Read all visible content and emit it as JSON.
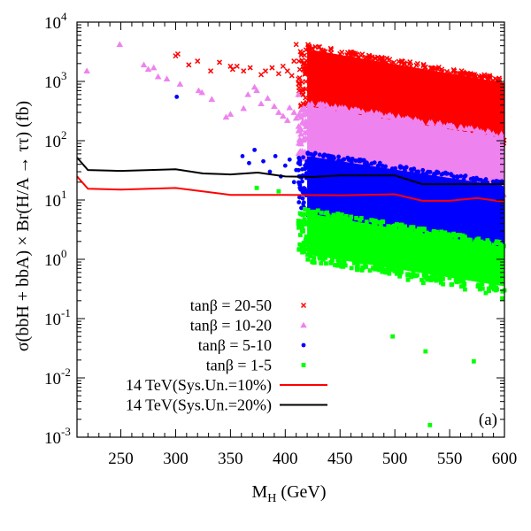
{
  "chart_data": {
    "type": "scatter",
    "xlabel_main": "M",
    "xlabel_sub": "H",
    "xlabel_rest": "  (GeV)",
    "ylabel": "σ(bbH + bbA) × Br(H/A → ττ) (fb)",
    "xlim": [
      210,
      600
    ],
    "ylim": [
      0.001,
      10000
    ],
    "yscale": "log",
    "grid": false,
    "legend_position": "bottom-left",
    "panel_label": "(a)",
    "x_ticks": [
      250,
      300,
      350,
      400,
      450,
      500,
      550,
      600
    ],
    "y_ticks": [
      {
        "value": 0.001,
        "base": "10",
        "exp": "-3"
      },
      {
        "value": 0.01,
        "base": "10",
        "exp": "-2"
      },
      {
        "value": 0.1,
        "base": "10",
        "exp": "-1"
      },
      {
        "value": 1,
        "base": "10",
        "exp": "0"
      },
      {
        "value": 10,
        "base": "10",
        "exp": "1"
      },
      {
        "value": 100,
        "base": "10",
        "exp": "2"
      },
      {
        "value": 1000,
        "base": "10",
        "exp": "3"
      },
      {
        "value": 10000,
        "base": "10",
        "exp": "4"
      }
    ],
    "scatter_series": [
      {
        "name": "tanβ = 20-50",
        "marker": "cross",
        "color": "#ff0000",
        "band": {
          "x": [
            420,
            600
          ],
          "y_top": [
            3500,
            950
          ],
          "y_bottom": [
            380,
            110
          ]
        },
        "points": [
          [
            300,
            2700
          ],
          [
            302,
            2900
          ],
          [
            312,
            1900
          ],
          [
            320,
            2200
          ],
          [
            332,
            1500
          ],
          [
            340,
            2100
          ],
          [
            350,
            1800
          ],
          [
            352,
            1600
          ],
          [
            356,
            1800
          ],
          [
            362,
            1500
          ],
          [
            368,
            1700
          ],
          [
            378,
            1300
          ],
          [
            382,
            1500
          ],
          [
            388,
            1700
          ],
          [
            394,
            1350
          ],
          [
            398,
            1800
          ],
          [
            402,
            1500
          ],
          [
            406,
            1250
          ],
          [
            408,
            2200
          ],
          [
            410,
            4200
          ],
          [
            412,
            1100
          ],
          [
            415,
            3000
          ],
          [
            417,
            2000
          ],
          [
            419,
            3400
          ],
          [
            420,
            1700
          ]
        ]
      },
      {
        "name": "tanβ = 10-20",
        "marker": "triangle",
        "color": "#ee82ee",
        "band": {
          "x": [
            420,
            600
          ],
          "y_top": [
            380,
            110
          ],
          "y_bottom": [
            50,
            15
          ]
        },
        "points": [
          [
            219,
            1500
          ],
          [
            249,
            4200
          ],
          [
            271,
            1900
          ],
          [
            275,
            1600
          ],
          [
            280,
            1700
          ],
          [
            284,
            1200
          ],
          [
            292,
            1100
          ],
          [
            304,
            900
          ],
          [
            321,
            700
          ],
          [
            324,
            650
          ],
          [
            333,
            500
          ],
          [
            346,
            250
          ],
          [
            350,
            280
          ],
          [
            362,
            350
          ],
          [
            366,
            600
          ],
          [
            372,
            800
          ],
          [
            374,
            700
          ],
          [
            378,
            420
          ],
          [
            384,
            520
          ],
          [
            390,
            380
          ],
          [
            394,
            300
          ],
          [
            398,
            260
          ],
          [
            402,
            220
          ],
          [
            404,
            360
          ],
          [
            408,
            300
          ],
          [
            410,
            240
          ],
          [
            412,
            600
          ],
          [
            414,
            160
          ],
          [
            416,
            200
          ],
          [
            418,
            280
          ]
        ]
      },
      {
        "name": "tanβ =  5-10",
        "marker": "circle",
        "color": "#0000ff",
        "band": {
          "x": [
            420,
            600
          ],
          "y_top": [
            55,
            17
          ],
          "y_bottom": [
            6,
            1.5
          ]
        },
        "points": [
          [
            301,
            550
          ],
          [
            361,
            55
          ],
          [
            367,
            42
          ],
          [
            372,
            70
          ],
          [
            380,
            45
          ],
          [
            386,
            30
          ],
          [
            391,
            55
          ],
          [
            396,
            25
          ],
          [
            400,
            38
          ],
          [
            404,
            48
          ],
          [
            408,
            20
          ],
          [
            410,
            32
          ],
          [
            412,
            42
          ],
          [
            414,
            15
          ],
          [
            416,
            26
          ],
          [
            418,
            38
          ],
          [
            419,
            12
          ]
        ]
      },
      {
        "name": "tanβ =  1-5",
        "marker": "square",
        "color": "#00ff00",
        "band": {
          "x": [
            420,
            600
          ],
          "y_top": [
            6,
            1.6
          ],
          "y_bottom": [
            1.2,
            0.35
          ]
        },
        "points": [
          [
            374,
            16
          ],
          [
            394,
            14
          ],
          [
            412,
            4
          ],
          [
            418,
            7
          ],
          [
            428,
            3
          ],
          [
            460,
            1.4
          ],
          [
            470,
            0.9
          ],
          [
            480,
            1.5
          ],
          [
            488,
            0.7
          ],
          [
            492,
            1.1
          ],
          [
            498,
            0.05
          ],
          [
            505,
            1.2
          ],
          [
            512,
            0.45
          ],
          [
            520,
            0.85
          ],
          [
            526,
            0.4
          ],
          [
            528,
            0.028
          ],
          [
            532,
            0.0016
          ],
          [
            536,
            0.55
          ],
          [
            544,
            0.38
          ],
          [
            552,
            0.6
          ],
          [
            560,
            0.42
          ],
          [
            564,
            0.31
          ],
          [
            572,
            0.019
          ],
          [
            576,
            0.35
          ],
          [
            583,
            0.27
          ],
          [
            590,
            0.55
          ],
          [
            598,
            0.22
          ],
          [
            600,
            0.3
          ]
        ]
      }
    ],
    "line_series": [
      {
        "name": "14 TeV(Sys.Un.=10%)",
        "color": "#ff0000",
        "x": [
          210,
          220,
          250,
          300,
          350,
          400,
          450,
          500,
          525,
          550,
          575,
          600
        ],
        "y": [
          25,
          15.5,
          15,
          16,
          12.2,
          12.2,
          12,
          12.5,
          9.7,
          9.7,
          10.8,
          9.3
        ]
      },
      {
        "name": "14 TeV(Sys.Un.=20%)",
        "color": "#000000",
        "x": [
          210,
          220,
          250,
          300,
          325,
          350,
          375,
          400,
          425,
          450,
          500,
          525,
          550,
          575,
          600
        ],
        "y": [
          52,
          32,
          31,
          33,
          28,
          27,
          29,
          25,
          24.5,
          26,
          26,
          18.5,
          18.5,
          18.5,
          18.5
        ]
      }
    ]
  }
}
